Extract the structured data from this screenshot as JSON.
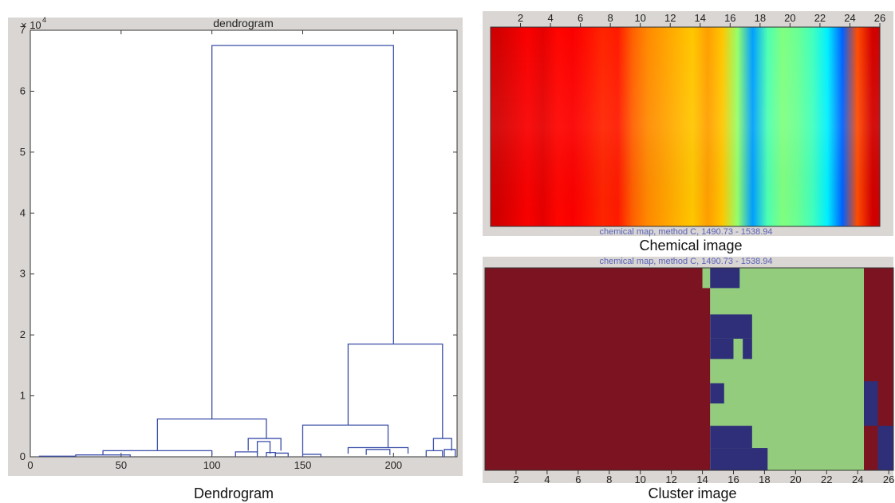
{
  "chart_data": [
    {
      "type": "dendrogram",
      "title": "dendrogram",
      "caption": "Dendrogram",
      "y_exponent_label": "× 10",
      "y_exponent_power": "4",
      "xlim": [
        0,
        235
      ],
      "ylim": [
        0,
        7
      ],
      "x_ticks": [
        0,
        50,
        100,
        150,
        200
      ],
      "y_ticks": [
        0,
        1,
        2,
        3,
        4,
        5,
        6,
        7
      ],
      "line_color": "#3b4fa8",
      "links": [
        {
          "x1": 100,
          "x2": 200,
          "y_low1": 0.62,
          "y_low2": 1.85,
          "y_top": 6.75
        },
        {
          "x1": 70,
          "x2": 130,
          "y_low1": 0.1,
          "y_low2": 0.3,
          "y_top": 0.62
        },
        {
          "x1": 175,
          "x2": 227,
          "y_low1": 0.52,
          "y_low2": 0.3,
          "y_top": 1.85
        },
        {
          "x1": 150,
          "x2": 197,
          "y_low1": 0.05,
          "y_low2": 0.15,
          "y_top": 0.52
        },
        {
          "x1": 40,
          "x2": 100,
          "y_low1": 0.03,
          "y_low2": 0.03,
          "y_top": 0.1
        },
        {
          "x1": 25,
          "x2": 55,
          "y_low1": 0.0,
          "y_low2": 0.0,
          "y_top": 0.03
        },
        {
          "x1": 120,
          "x2": 138,
          "y_low1": 0.1,
          "y_low2": 0.1,
          "y_top": 0.3
        },
        {
          "x1": 125,
          "x2": 132,
          "y_low1": 0.05,
          "y_low2": 0.05,
          "y_top": 0.25
        },
        {
          "x1": 113,
          "x2": 125,
          "y_low1": 0.0,
          "y_low2": 0.0,
          "y_top": 0.08
        },
        {
          "x1": 130,
          "x2": 135,
          "y_low1": 0.0,
          "y_low2": 0.0,
          "y_top": 0.07
        },
        {
          "x1": 135,
          "x2": 142,
          "y_low1": 0.0,
          "y_low2": 0.0,
          "y_top": 0.06
        },
        {
          "x1": 175,
          "x2": 208,
          "y_low1": 0.05,
          "y_low2": 0.05,
          "y_top": 0.15
        },
        {
          "x1": 185,
          "x2": 198,
          "y_low1": 0.03,
          "y_low2": 0.03,
          "y_top": 0.12
        },
        {
          "x1": 150,
          "x2": 160,
          "y_low1": 0.0,
          "y_low2": 0.0,
          "y_top": 0.04
        },
        {
          "x1": 222,
          "x2": 232,
          "y_low1": 0.1,
          "y_low2": 0.1,
          "y_top": 0.3
        },
        {
          "x1": 218,
          "x2": 227,
          "y_low1": 0.0,
          "y_low2": 0.0,
          "y_top": 0.1
        },
        {
          "x1": 228,
          "x2": 234,
          "y_low1": 0.0,
          "y_low2": 0.0,
          "y_top": 0.12
        },
        {
          "x1": 5,
          "x2": 25,
          "y_low1": 0.0,
          "y_low2": 0.0,
          "y_top": 0.01
        }
      ]
    },
    {
      "type": "heatmap",
      "caption": "Chemical image",
      "map_caption": "chemical map, method C, 1490.73 - 1538.94",
      "x_ticks": [
        2,
        4,
        6,
        8,
        10,
        12,
        14,
        16,
        18,
        20,
        22,
        24,
        "26"
      ],
      "xlim": [
        0,
        26
      ],
      "colormap": "jet",
      "columns": [
        {
          "x": 1,
          "value": 0.92
        },
        {
          "x": 2,
          "value": 0.9
        },
        {
          "x": 3,
          "value": 0.88
        },
        {
          "x": 4,
          "value": 0.9
        },
        {
          "x": 5,
          "value": 0.87
        },
        {
          "x": 6,
          "value": 0.88
        },
        {
          "x": 7,
          "value": 0.86
        },
        {
          "x": 8,
          "value": 0.84
        },
        {
          "x": 9,
          "value": 0.85
        },
        {
          "x": 10,
          "value": 0.78
        },
        {
          "x": 11,
          "value": 0.74
        },
        {
          "x": 12,
          "value": 0.72
        },
        {
          "x": 13,
          "value": 0.7
        },
        {
          "x": 14,
          "value": 0.68
        },
        {
          "x": 15,
          "value": 0.72
        },
        {
          "x": 16,
          "value": 0.68
        },
        {
          "x": 17,
          "value": 0.52
        },
        {
          "x": 18,
          "value": 0.28
        },
        {
          "x": 19,
          "value": 0.45
        },
        {
          "x": 20,
          "value": 0.5
        },
        {
          "x": 21,
          "value": 0.48
        },
        {
          "x": 22,
          "value": 0.44
        },
        {
          "x": 23,
          "value": 0.36
        },
        {
          "x": 24,
          "value": 0.22
        },
        {
          "x": 25,
          "value": 0.8
        },
        {
          "x": 26,
          "value": 0.92
        }
      ]
    },
    {
      "type": "heatmap",
      "caption": "Cluster image",
      "map_caption": "chemical map, method C, 1490.73 - 1538.94",
      "x_ticks": [
        2,
        4,
        6,
        8,
        10,
        12,
        14,
        16,
        18,
        20,
        22,
        24,
        "26"
      ],
      "xlim": [
        0,
        26
      ],
      "cluster_colors": {
        "1": "#7b1420",
        "2": "#94cc7e",
        "3": "#2e2f78"
      },
      "regions": [
        {
          "x0": 0,
          "x1": 14.5,
          "y0": 0,
          "y1": 1,
          "cluster": 1
        },
        {
          "x0": 14.5,
          "x1": 24.4,
          "y0": 0,
          "y1": 1,
          "cluster": 2
        },
        {
          "x0": 24.4,
          "x1": 26.3,
          "y0": 0,
          "y1": 1,
          "cluster": 1
        },
        {
          "x0": 14.0,
          "x1": 14.5,
          "y0": 0,
          "y1": 0.1,
          "cluster": 2
        },
        {
          "x0": 14.5,
          "x1": 16.4,
          "y0": 0,
          "y1": 0.1,
          "cluster": 3
        },
        {
          "x0": 14.5,
          "x1": 17.2,
          "y0": 0.23,
          "y1": 0.35,
          "cluster": 3
        },
        {
          "x0": 14.5,
          "x1": 16.0,
          "y0": 0.35,
          "y1": 0.45,
          "cluster": 3
        },
        {
          "x0": 16.6,
          "x1": 17.2,
          "y0": 0.35,
          "y1": 0.45,
          "cluster": 3
        },
        {
          "x0": 14.5,
          "x1": 15.4,
          "y0": 0.57,
          "y1": 0.67,
          "cluster": 3
        },
        {
          "x0": 14.5,
          "x1": 17.2,
          "y0": 0.78,
          "y1": 0.89,
          "cluster": 3
        },
        {
          "x0": 14.5,
          "x1": 18.2,
          "y0": 0.89,
          "y1": 1,
          "cluster": 3
        },
        {
          "x0": 24.4,
          "x1": 25.3,
          "y0": 0.56,
          "y1": 0.78,
          "cluster": 3
        },
        {
          "x0": 25.3,
          "x1": 26.3,
          "y0": 0.78,
          "y1": 1,
          "cluster": 3
        }
      ]
    }
  ]
}
